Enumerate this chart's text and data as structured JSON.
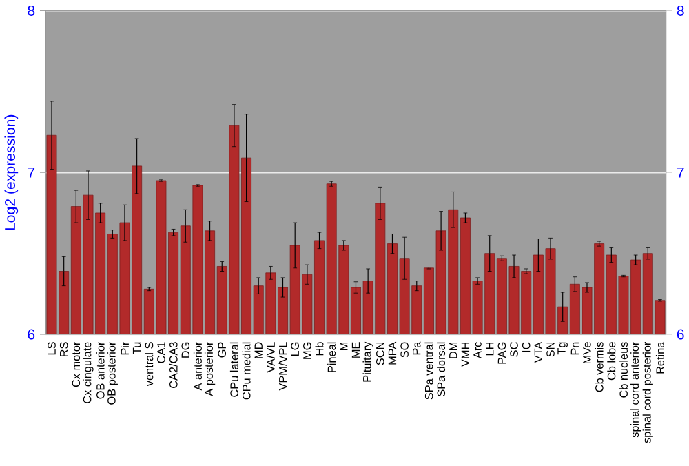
{
  "chart_data": {
    "type": "bar",
    "ylabel": "Log2 (expression)",
    "categories": [
      "LS",
      "RS",
      "Cx motor",
      "Cx cingulate",
      "OB anterior",
      "OB posterior",
      "Pir",
      "Tu",
      "ventral S",
      "CA1",
      "CA2/CA3",
      "DG",
      "A anterior",
      "A posterior",
      "GP",
      "CPu lateral",
      "CPu medial",
      "MD",
      "VA/VL",
      "VPM/VPL",
      "LG",
      "MG",
      "Hb",
      "Pineal",
      "M",
      "ME",
      "Pituitary",
      "SCN",
      "MPA",
      "SO",
      "Pa",
      "SPa ventral",
      "SPa dorsal",
      "DM",
      "VMH",
      "Arc",
      "LH",
      "PAG",
      "SC",
      "IC",
      "VTA",
      "SN",
      "Tg",
      "Pn",
      "MVe",
      "Cb vermis",
      "Cb lobe",
      "Cb nucleus",
      "spinal cord anterior",
      "spinal cord posterior",
      "Retina"
    ],
    "values": [
      7.23,
      6.39,
      6.79,
      6.86,
      6.75,
      6.62,
      6.69,
      7.04,
      6.28,
      6.95,
      6.63,
      6.67,
      6.92,
      6.64,
      6.42,
      7.29,
      7.09,
      6.3,
      6.38,
      6.29,
      6.55,
      6.37,
      6.58,
      6.93,
      6.55,
      6.29,
      6.33,
      6.81,
      6.56,
      6.47,
      6.3,
      6.41,
      6.64,
      6.77,
      6.72,
      6.33,
      6.5,
      6.47,
      6.42,
      6.39,
      6.49,
      6.53,
      6.17,
      6.31,
      6.29,
      6.56,
      6.49,
      6.36,
      6.46,
      6.5,
      6.21
    ],
    "errors": [
      0.21,
      0.09,
      0.1,
      0.15,
      0.06,
      0.025,
      0.11,
      0.17,
      0.01,
      0.005,
      0.02,
      0.1,
      0.005,
      0.06,
      0.03,
      0.13,
      0.27,
      0.05,
      0.04,
      0.06,
      0.14,
      0.06,
      0.05,
      0.015,
      0.03,
      0.035,
      0.075,
      0.1,
      0.06,
      0.13,
      0.03,
      0.005,
      0.12,
      0.11,
      0.03,
      0.02,
      0.11,
      0.015,
      0.07,
      0.015,
      0.1,
      0.065,
      0.09,
      0.045,
      0.03,
      0.015,
      0.045,
      0.005,
      0.03,
      0.035,
      0.005
    ],
    "color": "#b22a2a",
    "ylim": [
      6,
      8
    ],
    "yticks": [
      6,
      7,
      8
    ],
    "y2lim": [
      6,
      8
    ],
    "y2ticks": [
      6,
      7,
      8
    ],
    "grid": "y"
  }
}
